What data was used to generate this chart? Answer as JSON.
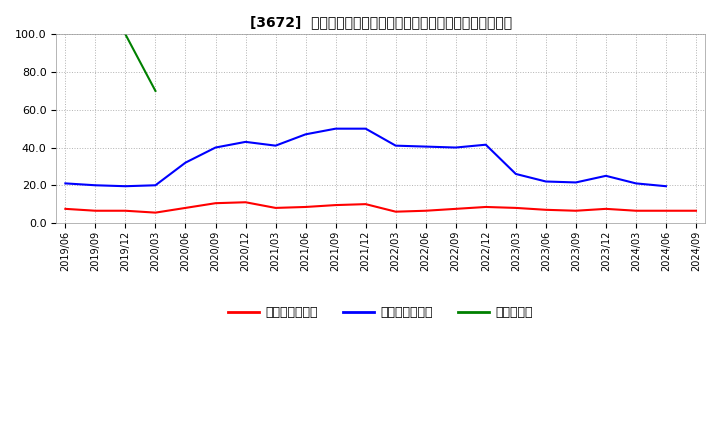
{
  "title": "[3672]  売上債権回転率、買入債務回転率、在庫回転率の推移",
  "ylim": [
    0.0,
    100.0
  ],
  "yticks": [
    0.0,
    20.0,
    40.0,
    60.0,
    80.0,
    100.0
  ],
  "background_color": "#ffffff",
  "grid_color": "#aaaaaa",
  "x_labels": [
    "2019/06",
    "2019/09",
    "2019/12",
    "2020/03",
    "2020/06",
    "2020/09",
    "2020/12",
    "2021/03",
    "2021/06",
    "2021/09",
    "2021/12",
    "2022/03",
    "2022/06",
    "2022/09",
    "2022/12",
    "2023/03",
    "2023/06",
    "2023/09",
    "2023/12",
    "2024/03",
    "2024/06",
    "2024/09"
  ],
  "series_order": [
    "売上債権回転率",
    "買入債務回転率",
    "在庫回転率"
  ],
  "series": {
    "売上債権回転率": {
      "color": "#ff0000",
      "values": [
        7.5,
        6.5,
        6.5,
        5.5,
        8.0,
        10.5,
        11.0,
        8.0,
        8.5,
        9.5,
        10.0,
        6.0,
        6.5,
        7.5,
        8.5,
        8.0,
        7.0,
        6.5,
        7.5,
        6.5,
        6.5,
        6.5
      ]
    },
    "買入債務回転率": {
      "color": "#0000ff",
      "values": [
        21.0,
        20.0,
        19.5,
        20.0,
        32.0,
        40.0,
        43.0,
        41.0,
        47.0,
        50.0,
        50.0,
        41.0,
        40.5,
        40.0,
        41.5,
        26.0,
        22.0,
        21.5,
        25.0,
        21.0,
        19.5,
        null
      ]
    },
    "在庫回転率": {
      "color": "#008000",
      "values": [
        null,
        null,
        100.0,
        70.0,
        null,
        null,
        null,
        null,
        null,
        null,
        null,
        null,
        null,
        null,
        null,
        null,
        null,
        null,
        null,
        null,
        null,
        null
      ]
    }
  },
  "legend": [
    {
      "label": "売上債権回転率",
      "color": "#ff0000"
    },
    {
      "label": "買入債務回転率",
      "color": "#0000ff"
    },
    {
      "label": "在庫回転率",
      "color": "#008000"
    }
  ]
}
